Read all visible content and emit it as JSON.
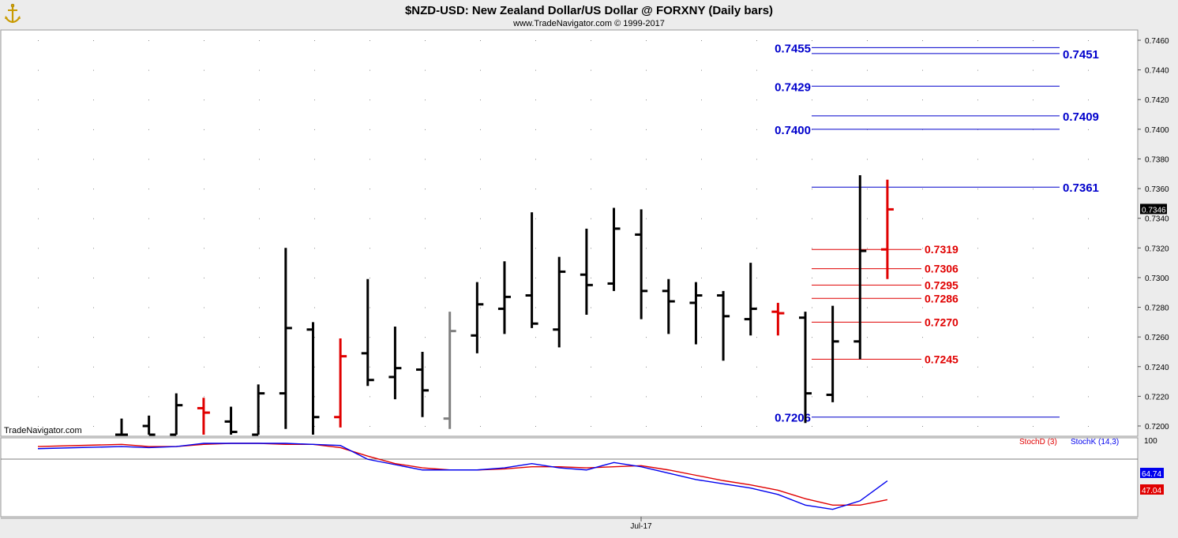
{
  "header": {
    "title": "$NZD-USD:  New Zealand Dollar/US Dollar @ FORXNY  (Daily bars)",
    "subtitle": "www.TradeNavigator.com © 1999-2017"
  },
  "watermark": "TradeNavigator.com",
  "logo_icon": "anchor-icon",
  "x_axis_label": "Jul-17",
  "last_price": "0.7346",
  "colors": {
    "up_bar": "#000000",
    "down_bar": "#e00000",
    "gray_bar": "#808080",
    "blue_level": "#0000cc",
    "red_level": "#e00000",
    "stoch_k": "#0000ee",
    "stoch_d": "#e00000",
    "price_tag_bg": "#000000"
  },
  "chart_data": [
    {
      "type": "ohlc",
      "title": "$NZD-USD:  New Zealand Dollar/US Dollar @ FORXNY  (Daily bars)",
      "ylim": [
        0.719,
        0.7465
      ],
      "y_ticks": [
        "0.7200",
        "0.7220",
        "0.7240",
        "0.7260",
        "0.7280",
        "0.7300",
        "0.7320",
        "0.7340",
        "0.7360",
        "0.7380",
        "0.7400",
        "0.7420",
        "0.7440",
        "0.7460"
      ],
      "y_tick_values": [
        0.72,
        0.722,
        0.724,
        0.726,
        0.728,
        0.73,
        0.732,
        0.734,
        0.736,
        0.738,
        0.74,
        0.742,
        0.744,
        0.746
      ],
      "grid": true,
      "x_tick_label": "Jul-17",
      "bars": [
        {
          "o": 0.7186,
          "h": 0.7205,
          "l": 0.7185,
          "c": 0.719,
          "color": "black"
        },
        {
          "o": 0.72,
          "h": 0.7207,
          "l": 0.7187,
          "c": 0.7194,
          "color": "black"
        },
        {
          "o": 0.7194,
          "h": 0.7222,
          "l": 0.719,
          "c": 0.7214,
          "color": "black"
        },
        {
          "o": 0.7212,
          "h": 0.7219,
          "l": 0.7193,
          "c": 0.7209,
          "color": "red"
        },
        {
          "o": 0.7203,
          "h": 0.7213,
          "l": 0.719,
          "c": 0.7196,
          "color": "black"
        },
        {
          "o": 0.719,
          "h": 0.7228,
          "l": 0.7188,
          "c": 0.7222,
          "color": "black"
        },
        {
          "o": 0.7222,
          "h": 0.732,
          "l": 0.7198,
          "c": 0.7266,
          "color": "black"
        },
        {
          "o": 0.7265,
          "h": 0.727,
          "l": 0.7192,
          "c": 0.7206,
          "color": "black"
        },
        {
          "o": 0.7206,
          "h": 0.7259,
          "l": 0.7199,
          "c": 0.7247,
          "color": "red"
        },
        {
          "o": 0.7249,
          "h": 0.7299,
          "l": 0.7227,
          "c": 0.7231,
          "color": "black"
        },
        {
          "o": 0.7233,
          "h": 0.7267,
          "l": 0.7218,
          "c": 0.7239,
          "color": "black"
        },
        {
          "o": 0.7238,
          "h": 0.725,
          "l": 0.7206,
          "c": 0.7224,
          "color": "black"
        },
        {
          "o": 0.7205,
          "h": 0.7277,
          "l": 0.7198,
          "c": 0.7264,
          "color": "gray"
        },
        {
          "o": 0.7261,
          "h": 0.7297,
          "l": 0.7249,
          "c": 0.7282,
          "color": "black"
        },
        {
          "o": 0.7279,
          "h": 0.7311,
          "l": 0.7262,
          "c": 0.7287,
          "color": "black"
        },
        {
          "o": 0.7288,
          "h": 0.7344,
          "l": 0.7266,
          "c": 0.7269,
          "color": "black"
        },
        {
          "o": 0.7265,
          "h": 0.7314,
          "l": 0.7253,
          "c": 0.7304,
          "color": "black"
        },
        {
          "o": 0.7302,
          "h": 0.7333,
          "l": 0.7275,
          "c": 0.7295,
          "color": "black"
        },
        {
          "o": 0.7296,
          "h": 0.7347,
          "l": 0.7291,
          "c": 0.7333,
          "color": "black"
        },
        {
          "o": 0.7329,
          "h": 0.7346,
          "l": 0.7272,
          "c": 0.7291,
          "color": "black"
        },
        {
          "o": 0.7291,
          "h": 0.7299,
          "l": 0.7262,
          "c": 0.7284,
          "color": "black"
        },
        {
          "o": 0.7283,
          "h": 0.7297,
          "l": 0.7255,
          "c": 0.7288,
          "color": "black"
        },
        {
          "o": 0.7288,
          "h": 0.7291,
          "l": 0.7244,
          "c": 0.7274,
          "color": "black"
        },
        {
          "o": 0.7272,
          "h": 0.731,
          "l": 0.7261,
          "c": 0.7279,
          "color": "black"
        },
        {
          "o": 0.7277,
          "h": 0.7283,
          "l": 0.7261,
          "c": 0.7276,
          "color": "red"
        },
        {
          "o": 0.7273,
          "h": 0.7277,
          "l": 0.7202,
          "c": 0.7222,
          "color": "black"
        },
        {
          "o": 0.7221,
          "h": 0.7281,
          "l": 0.7216,
          "c": 0.7257,
          "color": "black"
        },
        {
          "o": 0.7257,
          "h": 0.7369,
          "l": 0.7245,
          "c": 0.7318,
          "color": "black"
        },
        {
          "o": 0.7319,
          "h": 0.7366,
          "l": 0.7299,
          "c": 0.7346,
          "color": "red"
        }
      ],
      "blue_levels": [
        {
          "value": 0.7455,
          "label": "0.7455",
          "side": "left"
        },
        {
          "value": 0.7451,
          "label": "0.7451",
          "side": "right"
        },
        {
          "value": 0.7429,
          "label": "0.7429",
          "side": "left"
        },
        {
          "value": 0.7409,
          "label": "0.7409",
          "side": "right"
        },
        {
          "value": 0.74,
          "label": "0.7400",
          "side": "left"
        },
        {
          "value": 0.7361,
          "label": "0.7361",
          "side": "right"
        },
        {
          "value": 0.7206,
          "label": "0.7206",
          "side": "left"
        }
      ],
      "red_levels": [
        {
          "value": 0.7319,
          "label": "0.7319"
        },
        {
          "value": 0.7306,
          "label": "0.7306"
        },
        {
          "value": 0.7295,
          "label": "0.7295"
        },
        {
          "value": 0.7286,
          "label": "0.7286"
        },
        {
          "value": 0.727,
          "label": "0.7270"
        },
        {
          "value": 0.7245,
          "label": "0.7245"
        }
      ]
    },
    {
      "type": "line",
      "ylim": [
        0,
        100
      ],
      "y_ticks": [
        "100"
      ],
      "legend": [
        "StochD (3)",
        "StochK (14,3)"
      ],
      "legend_placement": "top-right",
      "series": [
        {
          "name": "StochK (14,3)",
          "values": [
            97,
            96,
            97,
            100,
            100,
            100,
            100,
            99,
            98,
            85,
            80,
            75,
            75,
            75,
            77,
            81,
            77,
            75,
            82,
            78,
            72,
            66,
            62,
            58,
            52,
            42,
            38,
            46,
            64.74
          ]
        },
        {
          "name": "StochD (3)",
          "values": [
            99,
            97,
            97,
            99,
            100,
            100,
            99,
            99,
            96,
            88,
            81,
            77,
            75,
            75,
            76,
            78,
            78,
            77,
            78,
            79,
            75,
            70,
            65,
            61,
            56,
            48,
            42,
            42,
            47.04
          ]
        }
      ],
      "last_values": {
        "k": "64.74",
        "d": "47.04"
      }
    }
  ]
}
